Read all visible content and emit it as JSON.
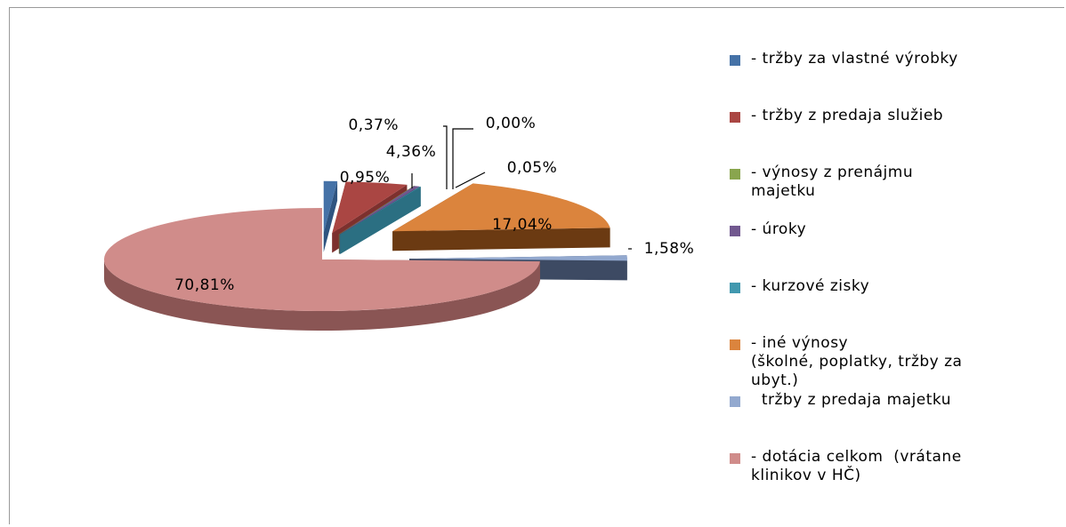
{
  "chart_data": {
    "type": "pie",
    "style": "3d-exploded",
    "title": "",
    "legend_position": "right",
    "slices": [
      {
        "label": "- tržby za vlastné výrobky",
        "value": 0.95,
        "value_label": "0,95%",
        "color": "#4572A7",
        "dark": "#2f5480"
      },
      {
        "label": "- tržby z predaja služieb",
        "value": 4.36,
        "value_label": "4,36%",
        "color": "#AA4643",
        "dark": "#7d302e"
      },
      {
        "label": "- výnosy z prenájmu majetku",
        "value": 0.0,
        "value_label": "0,00%",
        "color": "#89A54E",
        "dark": "#647a36"
      },
      {
        "label": "- úroky",
        "value": 0.37,
        "value_label": "0,37%",
        "color": "#71588F",
        "dark": "#513e68"
      },
      {
        "label": "- kurzové zisky",
        "value": 0.05,
        "value_label": "0,05%",
        "color": "#4198AF",
        "dark": "#2b6f82"
      },
      {
        "label": "- iné výnosy (školné, poplatky, tržby za ubyt.)",
        "value": 17.04,
        "value_label": "17,04%",
        "color": "#DB843D",
        "dark": "#6b3a12"
      },
      {
        "label": "  tržby z predaja majetku",
        "value": 1.58,
        "value_label": "1,58%",
        "color": "#93A9CF",
        "dark": "#3d4a63"
      },
      {
        "label": "- dotácia celkom  (vrátane klinikov v HČ)",
        "value": 70.81,
        "value_label": "70,81%",
        "color": "#D08C8A",
        "dark": "#8a5554"
      }
    ]
  },
  "legend": {
    "items": [
      {
        "text": "- tržby za vlastné výrobky",
        "color": "#4572A7"
      },
      {
        "text": "- tržby z predaja služieb",
        "color": "#AA4643"
      },
      {
        "text": "- výnosy z prenájmu\nmajetku",
        "color": "#89A54E"
      },
      {
        "text": "- úroky",
        "color": "#71588F"
      },
      {
        "text": "- kurzové zisky",
        "color": "#4198AF"
      },
      {
        "text": "- iné výnosy\n(školné, poplatky, tržby za\nubyt.)",
        "color": "#DB843D"
      },
      {
        "text": "  tržby z predaja majetku",
        "color": "#93A9CF"
      },
      {
        "text": "- dotácia celkom  (vrátane\nklinikov v HČ)",
        "color": "#D08C8A"
      }
    ]
  }
}
